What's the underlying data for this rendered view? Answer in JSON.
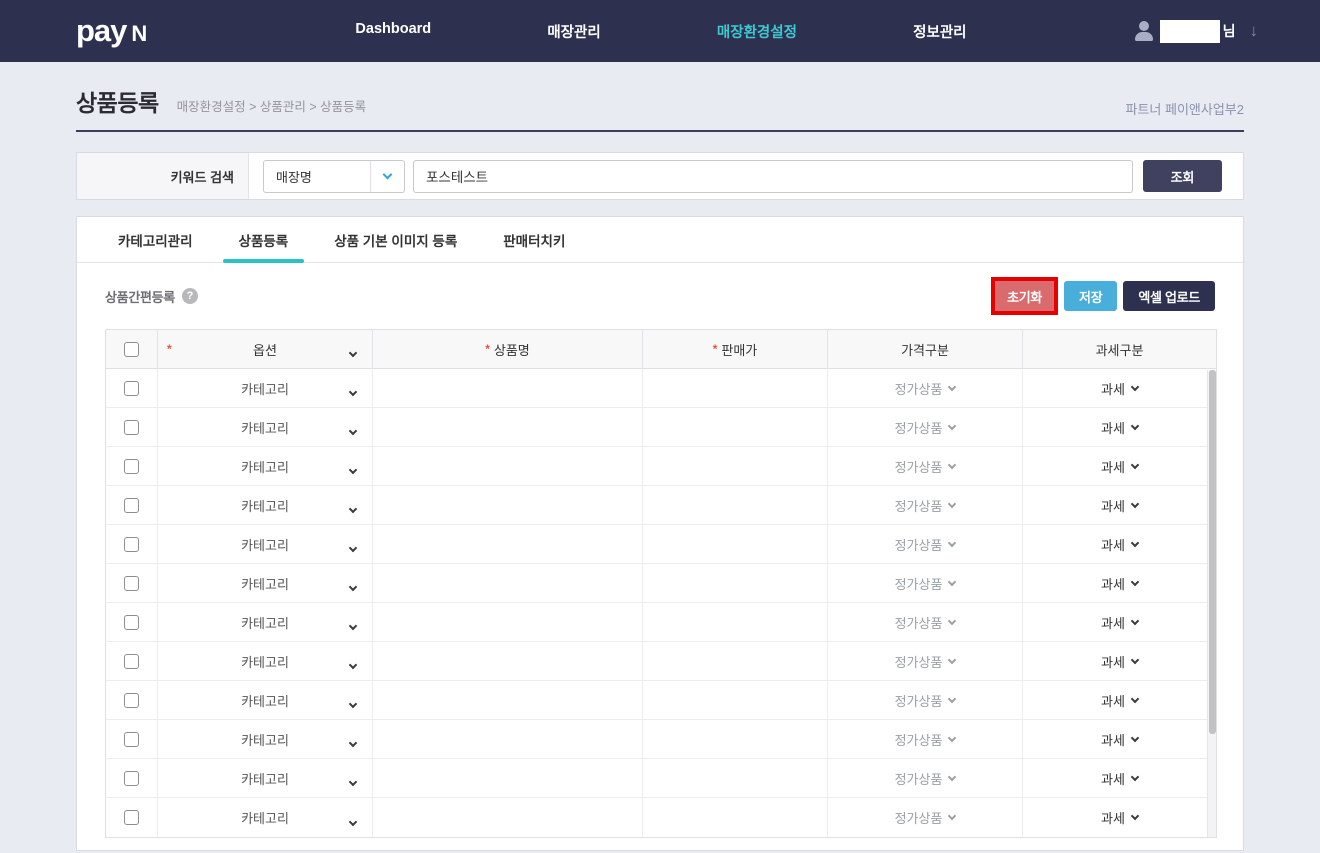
{
  "brand": {
    "pay": "pay",
    "n": "N"
  },
  "nav": {
    "items": [
      {
        "label": "Dashboard",
        "name": "nav-dashboard",
        "active": false
      },
      {
        "label": "매장관리",
        "name": "nav-store-management",
        "active": false
      },
      {
        "label": "매장환경설정",
        "name": "nav-store-environment-settings",
        "active": true
      },
      {
        "label": "정보관리",
        "name": "nav-info-management",
        "active": false
      }
    ],
    "user_suffix": "님",
    "dropdown_arrow": "↓"
  },
  "page": {
    "title": "상품등록",
    "breadcrumb": "매장환경설정 > 상품관리 > 상품등록",
    "partner": "파트너 페이앤사업부2"
  },
  "search": {
    "label": "키워드 검색",
    "select_value": "매장명",
    "input_value": "포스테스트",
    "submit_label": "조회"
  },
  "tabs": [
    {
      "label": "카테고리관리",
      "name": "tab-category-management",
      "active": false
    },
    {
      "label": "상품등록",
      "name": "tab-product-registration",
      "active": true
    },
    {
      "label": "상품 기본 이미지 등록",
      "name": "tab-product-default-image",
      "active": false
    },
    {
      "label": "판매터치키",
      "name": "tab-sales-touch-key",
      "active": false
    }
  ],
  "toolbar": {
    "section_title": "상품간편등록",
    "help_glyph": "?",
    "buttons": [
      {
        "label": "초기화",
        "name": "reset-button",
        "style": "highlight"
      },
      {
        "label": "저장",
        "name": "save-button",
        "style": "teal"
      },
      {
        "label": "엑셀 업로드",
        "name": "excel-upload-button",
        "style": "dark"
      }
    ]
  },
  "table": {
    "required_mark": "*",
    "headers": [
      {
        "label": "옵션",
        "required": true,
        "required_edge": true,
        "chevron": true
      },
      {
        "label": "상품명",
        "required": true
      },
      {
        "label": "판매가",
        "required": true
      },
      {
        "label": "가격구분"
      },
      {
        "label": "과세구분"
      }
    ],
    "rows": [
      {
        "checked": false,
        "option": "카테고리",
        "product_name": "",
        "price": "",
        "price_type": "정가상품",
        "tax_type": "과세"
      },
      {
        "checked": false,
        "option": "카테고리",
        "product_name": "",
        "price": "",
        "price_type": "정가상품",
        "tax_type": "과세"
      },
      {
        "checked": false,
        "option": "카테고리",
        "product_name": "",
        "price": "",
        "price_type": "정가상품",
        "tax_type": "과세"
      },
      {
        "checked": false,
        "option": "카테고리",
        "product_name": "",
        "price": "",
        "price_type": "정가상품",
        "tax_type": "과세"
      },
      {
        "checked": false,
        "option": "카테고리",
        "product_name": "",
        "price": "",
        "price_type": "정가상품",
        "tax_type": "과세"
      },
      {
        "checked": false,
        "option": "카테고리",
        "product_name": "",
        "price": "",
        "price_type": "정가상품",
        "tax_type": "과세"
      },
      {
        "checked": false,
        "option": "카테고리",
        "product_name": "",
        "price": "",
        "price_type": "정가상품",
        "tax_type": "과세"
      },
      {
        "checked": false,
        "option": "카테고리",
        "product_name": "",
        "price": "",
        "price_type": "정가상품",
        "tax_type": "과세"
      },
      {
        "checked": false,
        "option": "카테고리",
        "product_name": "",
        "price": "",
        "price_type": "정가상품",
        "tax_type": "과세"
      },
      {
        "checked": false,
        "option": "카테고리",
        "product_name": "",
        "price": "",
        "price_type": "정가상품",
        "tax_type": "과세"
      },
      {
        "checked": false,
        "option": "카테고리",
        "product_name": "",
        "price": "",
        "price_type": "정가상품",
        "tax_type": "과세"
      },
      {
        "checked": false,
        "option": "카테고리",
        "product_name": "",
        "price": "",
        "price_type": "정가상품",
        "tax_type": "과세"
      }
    ]
  },
  "colors": {
    "nav_bg": "#2e3050",
    "nav_active": "#3ec9cf",
    "page_bg": "#e9ebf3",
    "tab_underline": "#29c2c7",
    "navy_button": "#3f415f",
    "teal_button": "#49aed9",
    "dark_button": "#2e3050",
    "annotation_red": "#e60000",
    "required_mark": "#e8503a"
  }
}
